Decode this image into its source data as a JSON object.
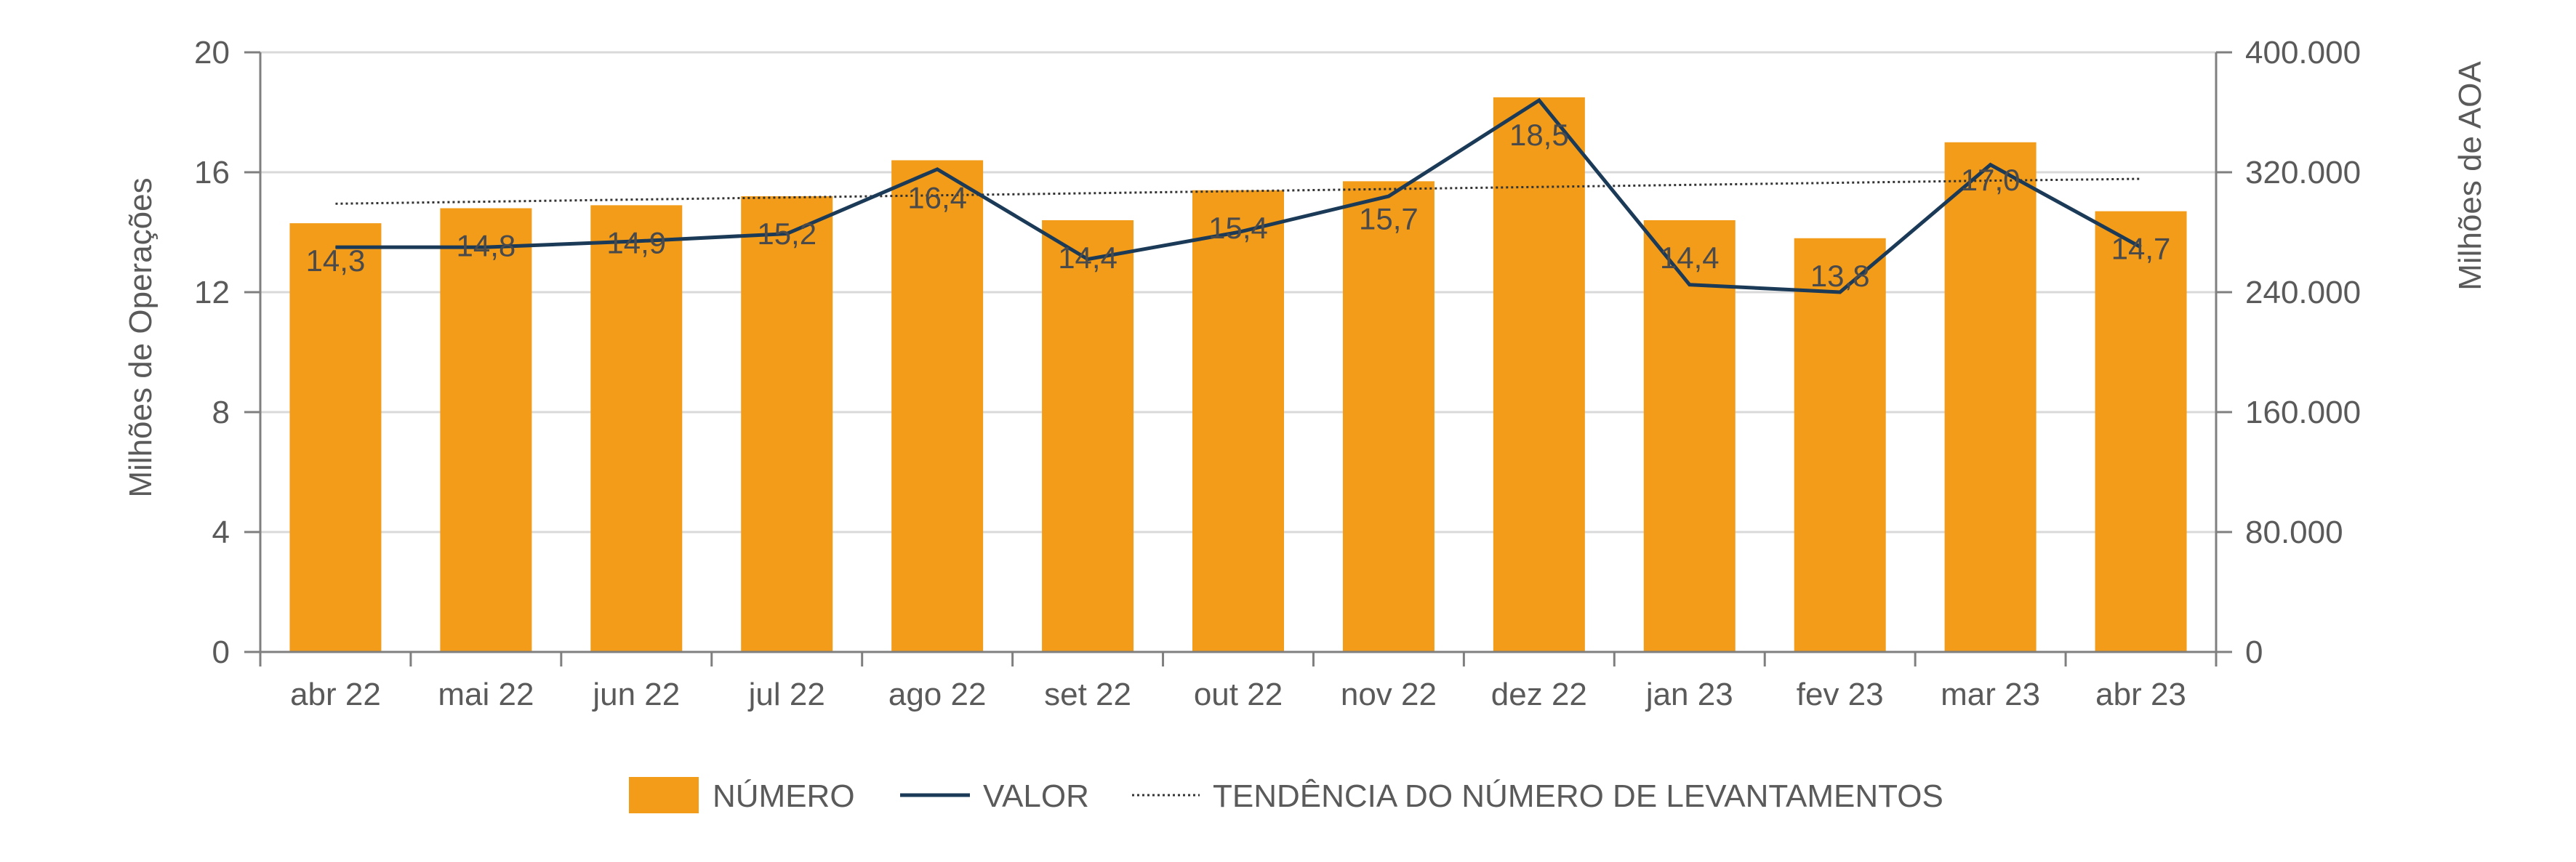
{
  "chart_data": {
    "type": "bar",
    "categories": [
      "abr 22",
      "mai 22",
      "jun 22",
      "jul 22",
      "ago 22",
      "set 22",
      "out 22",
      "nov 22",
      "dez 22",
      "jan 23",
      "fev 23",
      "mar 23",
      "abr 23"
    ],
    "series": [
      {
        "name": "NÚMERO",
        "type": "bar",
        "axis": "left",
        "values": [
          14.3,
          14.8,
          14.9,
          15.2,
          16.4,
          14.4,
          15.4,
          15.7,
          18.5,
          14.4,
          13.8,
          17.0,
          14.7
        ],
        "labels": [
          "14,3",
          "14,8",
          "14,9",
          "15,2",
          "16,4",
          "14,4",
          "15,4",
          "15,7",
          "18,5",
          "14,4",
          "13,8",
          "17,0",
          "14,7"
        ],
        "color": "#F39C1A"
      },
      {
        "name": "VALOR",
        "type": "line",
        "axis": "right",
        "values": [
          270000,
          270000,
          274000,
          279000,
          322000,
          262000,
          280000,
          304000,
          368000,
          245000,
          240000,
          325000,
          270000
        ],
        "color": "#1B3A57"
      },
      {
        "name": "TENDÊNCIA DO NÚMERO DE LEVANTAMENTOS",
        "type": "trendline",
        "axis": "left",
        "values": [
          14.95,
          15.02,
          15.09,
          15.16,
          15.23,
          15.3,
          15.37,
          15.44,
          15.51,
          15.58,
          15.65,
          15.72,
          15.78
        ],
        "color": "#333333"
      }
    ],
    "y_left": {
      "label": "Milhões de Operações",
      "ylim": [
        0,
        20
      ],
      "ticks": [
        0,
        4,
        8,
        12,
        16,
        20
      ],
      "tick_labels": [
        "0",
        "4",
        "8",
        "12",
        "16",
        "20"
      ]
    },
    "y_right": {
      "label": "Milhões de AOA",
      "ylim": [
        0,
        400000
      ],
      "ticks": [
        0,
        80000,
        160000,
        240000,
        320000,
        400000
      ],
      "tick_labels": [
        "0",
        "80.000",
        "160.000",
        "240.000",
        "320.000",
        "400.000"
      ]
    },
    "grid": true,
    "legend_position": "bottom"
  }
}
